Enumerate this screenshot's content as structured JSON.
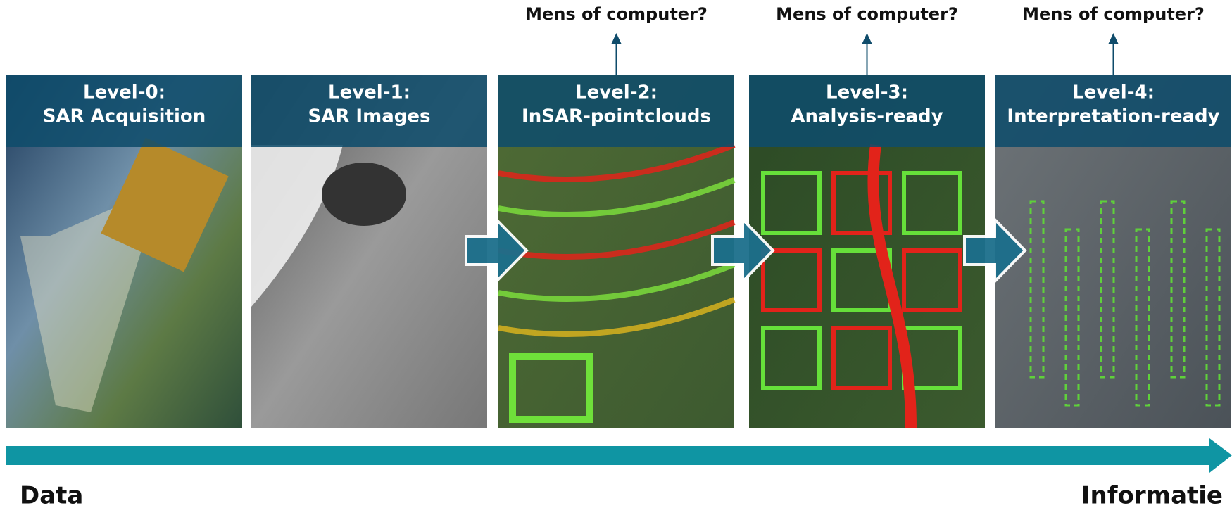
{
  "panels": [
    {
      "level": "Level-0:",
      "title": "SAR Acquisition"
    },
    {
      "level": "Level-1:",
      "title": "SAR Images"
    },
    {
      "level": "Level-2:",
      "title": "InSAR-pointclouds"
    },
    {
      "level": "Level-3:",
      "title": "Analysis-ready"
    },
    {
      "level": "Level-4:",
      "title": "Interpretation-ready"
    }
  ],
  "questions": [
    "Mens of computer?",
    "Mens of computer?",
    "Mens of computer?"
  ],
  "axis": {
    "start": "Data",
    "end": "Informatie"
  }
}
